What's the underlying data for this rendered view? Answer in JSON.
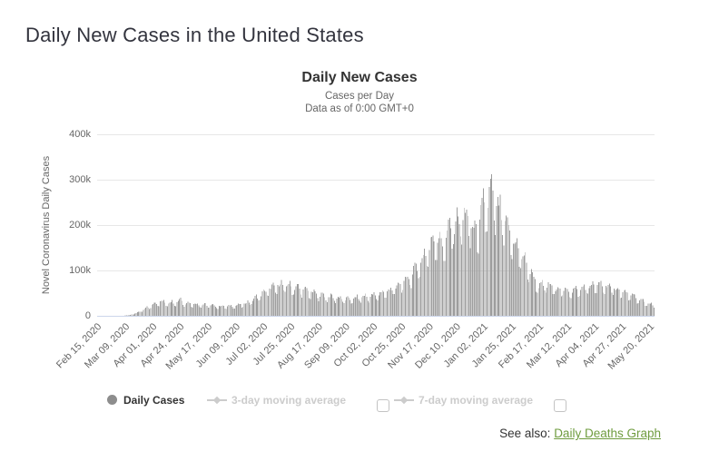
{
  "page": {
    "title": "Daily New Cases in the United States",
    "see_also": {
      "prefix": "See also: ",
      "link": "Daily Deaths Graph"
    }
  },
  "chart": {
    "title": "Daily New Cases",
    "subtitle1": "Cases per Day",
    "subtitle2": "Data as of 0:00 GMT+0",
    "y_axis_title": "Novel Coronavirus Daily Cases",
    "legend": [
      {
        "label": "Daily Cases",
        "marker": "circle-icon",
        "active": true,
        "has_checkbox": false
      },
      {
        "label": "3-day moving average",
        "marker": "line-diamond-icon",
        "active": false,
        "has_checkbox": true,
        "checkbox_checked": false
      },
      {
        "label": "7-day moving average",
        "marker": "line-diamond-icon",
        "active": false,
        "has_checkbox": true,
        "checkbox_checked": false
      }
    ],
    "colors": {
      "bars": "#9d9d9d",
      "legend_active_marker": "#8d8d8d",
      "legend_disabled": "#cccccc",
      "gridline": "#e7e7e7",
      "axis_line": "#ccd6eb",
      "tick_label": "#666666",
      "title": "#333333",
      "link_green": "#6f9c3f"
    }
  },
  "chart_data": {
    "type": "bar",
    "title": "Daily New Cases",
    "subtitle": [
      "Cases per Day",
      "Data as of 0:00 GMT+0"
    ],
    "series_name": "Daily Cases",
    "ylabel": "Novel Coronavirus Daily Cases",
    "ylim": [
      0,
      400000
    ],
    "yticks": [
      {
        "label": "0",
        "value": 0
      },
      {
        "label": "100k",
        "value": 100000
      },
      {
        "label": "200k",
        "value": 200000
      },
      {
        "label": "300k",
        "value": 300000
      },
      {
        "label": "400k",
        "value": 400000
      }
    ],
    "grid": "horizontal",
    "legend_position": "bottom",
    "x_start": "Feb 15, 2020",
    "x_end": "May 23, 2021",
    "x_range_days": 464,
    "tick_interval_days": 23,
    "xticklabels": [
      "Feb 15, 2020",
      "Mar 09, 2020",
      "Apr 01, 2020",
      "Apr 24, 2020",
      "May 17, 2020",
      "Jun 09, 2020",
      "Jul 02, 2020",
      "Jul 25, 2020",
      "Aug 17, 2020",
      "Sep 09, 2020",
      "Oct 02, 2020",
      "Oct 25, 2020",
      "Nov 17, 2020",
      "Dec 10, 2020",
      "Jan 02, 2021",
      "Jan 25, 2021",
      "Feb 17, 2021",
      "Mar 12, 2021",
      "Apr 04, 2021",
      "Apr 27, 2021",
      "May 20, 2021"
    ],
    "envelope_day_value": [
      [
        0,
        0
      ],
      [
        18,
        120
      ],
      [
        23,
        700
      ],
      [
        27,
        2000
      ],
      [
        31,
        5200
      ],
      [
        35,
        9000
      ],
      [
        39,
        14500
      ],
      [
        43,
        20000
      ],
      [
        46,
        25500
      ],
      [
        52,
        31000
      ],
      [
        57,
        29000
      ],
      [
        62,
        29500
      ],
      [
        66,
        30500
      ],
      [
        69,
        36500
      ],
      [
        72,
        28500
      ],
      [
        78,
        27000
      ],
      [
        85,
        24500
      ],
      [
        92,
        23000
      ],
      [
        100,
        21500
      ],
      [
        107,
        20500
      ],
      [
        113,
        21500
      ],
      [
        120,
        24500
      ],
      [
        126,
        30000
      ],
      [
        132,
        40000
      ],
      [
        138,
        50000
      ],
      [
        144,
        60000
      ],
      [
        150,
        66000
      ],
      [
        153,
        68000
      ],
      [
        158,
        66000
      ],
      [
        164,
        62500
      ],
      [
        170,
        58500
      ],
      [
        177,
        51500
      ],
      [
        184,
        46500
      ],
      [
        192,
        42000
      ],
      [
        199,
        39500
      ],
      [
        205,
        36500
      ],
      [
        211,
        36000
      ],
      [
        218,
        40500
      ],
      [
        224,
        42000
      ],
      [
        231,
        44500
      ],
      [
        238,
        51500
      ],
      [
        244,
        56500
      ],
      [
        250,
        64000
      ],
      [
        255,
        74000
      ],
      [
        260,
        86000
      ],
      [
        265,
        103000
      ],
      [
        270,
        122000
      ],
      [
        275,
        146000
      ],
      [
        279,
        165000
      ],
      [
        283,
        172000
      ],
      [
        286,
        152000
      ],
      [
        290,
        172000
      ],
      [
        295,
        196000
      ],
      [
        300,
        207000
      ],
      [
        305,
        217000
      ],
      [
        309,
        211000
      ],
      [
        313,
        180000
      ],
      [
        317,
        196000
      ],
      [
        321,
        235000
      ],
      [
        325,
        252000
      ],
      [
        328,
        272000
      ],
      [
        331,
        245000
      ],
      [
        335,
        222000
      ],
      [
        339,
        203000
      ],
      [
        343,
        178000
      ],
      [
        347,
        158000
      ],
      [
        352,
        136000
      ],
      [
        356,
        118000
      ],
      [
        361,
        92000
      ],
      [
        365,
        72000
      ],
      [
        368,
        64000
      ],
      [
        372,
        68000
      ],
      [
        377,
        63500
      ],
      [
        382,
        59500
      ],
      [
        388,
        55500
      ],
      [
        394,
        55000
      ],
      [
        400,
        57000
      ],
      [
        405,
        60500
      ],
      [
        411,
        64500
      ],
      [
        416,
        66500
      ],
      [
        421,
        67000
      ],
      [
        427,
        61500
      ],
      [
        433,
        56500
      ],
      [
        439,
        50000
      ],
      [
        445,
        43000
      ],
      [
        451,
        35000
      ],
      [
        457,
        29000
      ],
      [
        461,
        24500
      ],
      [
        463,
        22000
      ]
    ],
    "weekday_factors": [
      0.78,
      0.74,
      0.97,
      1.06,
      1.1,
      1.12,
      1.0
    ],
    "start_weekday_index": 6,
    "peak": {
      "date": "Jan 08, 2021",
      "value": 305000
    }
  }
}
